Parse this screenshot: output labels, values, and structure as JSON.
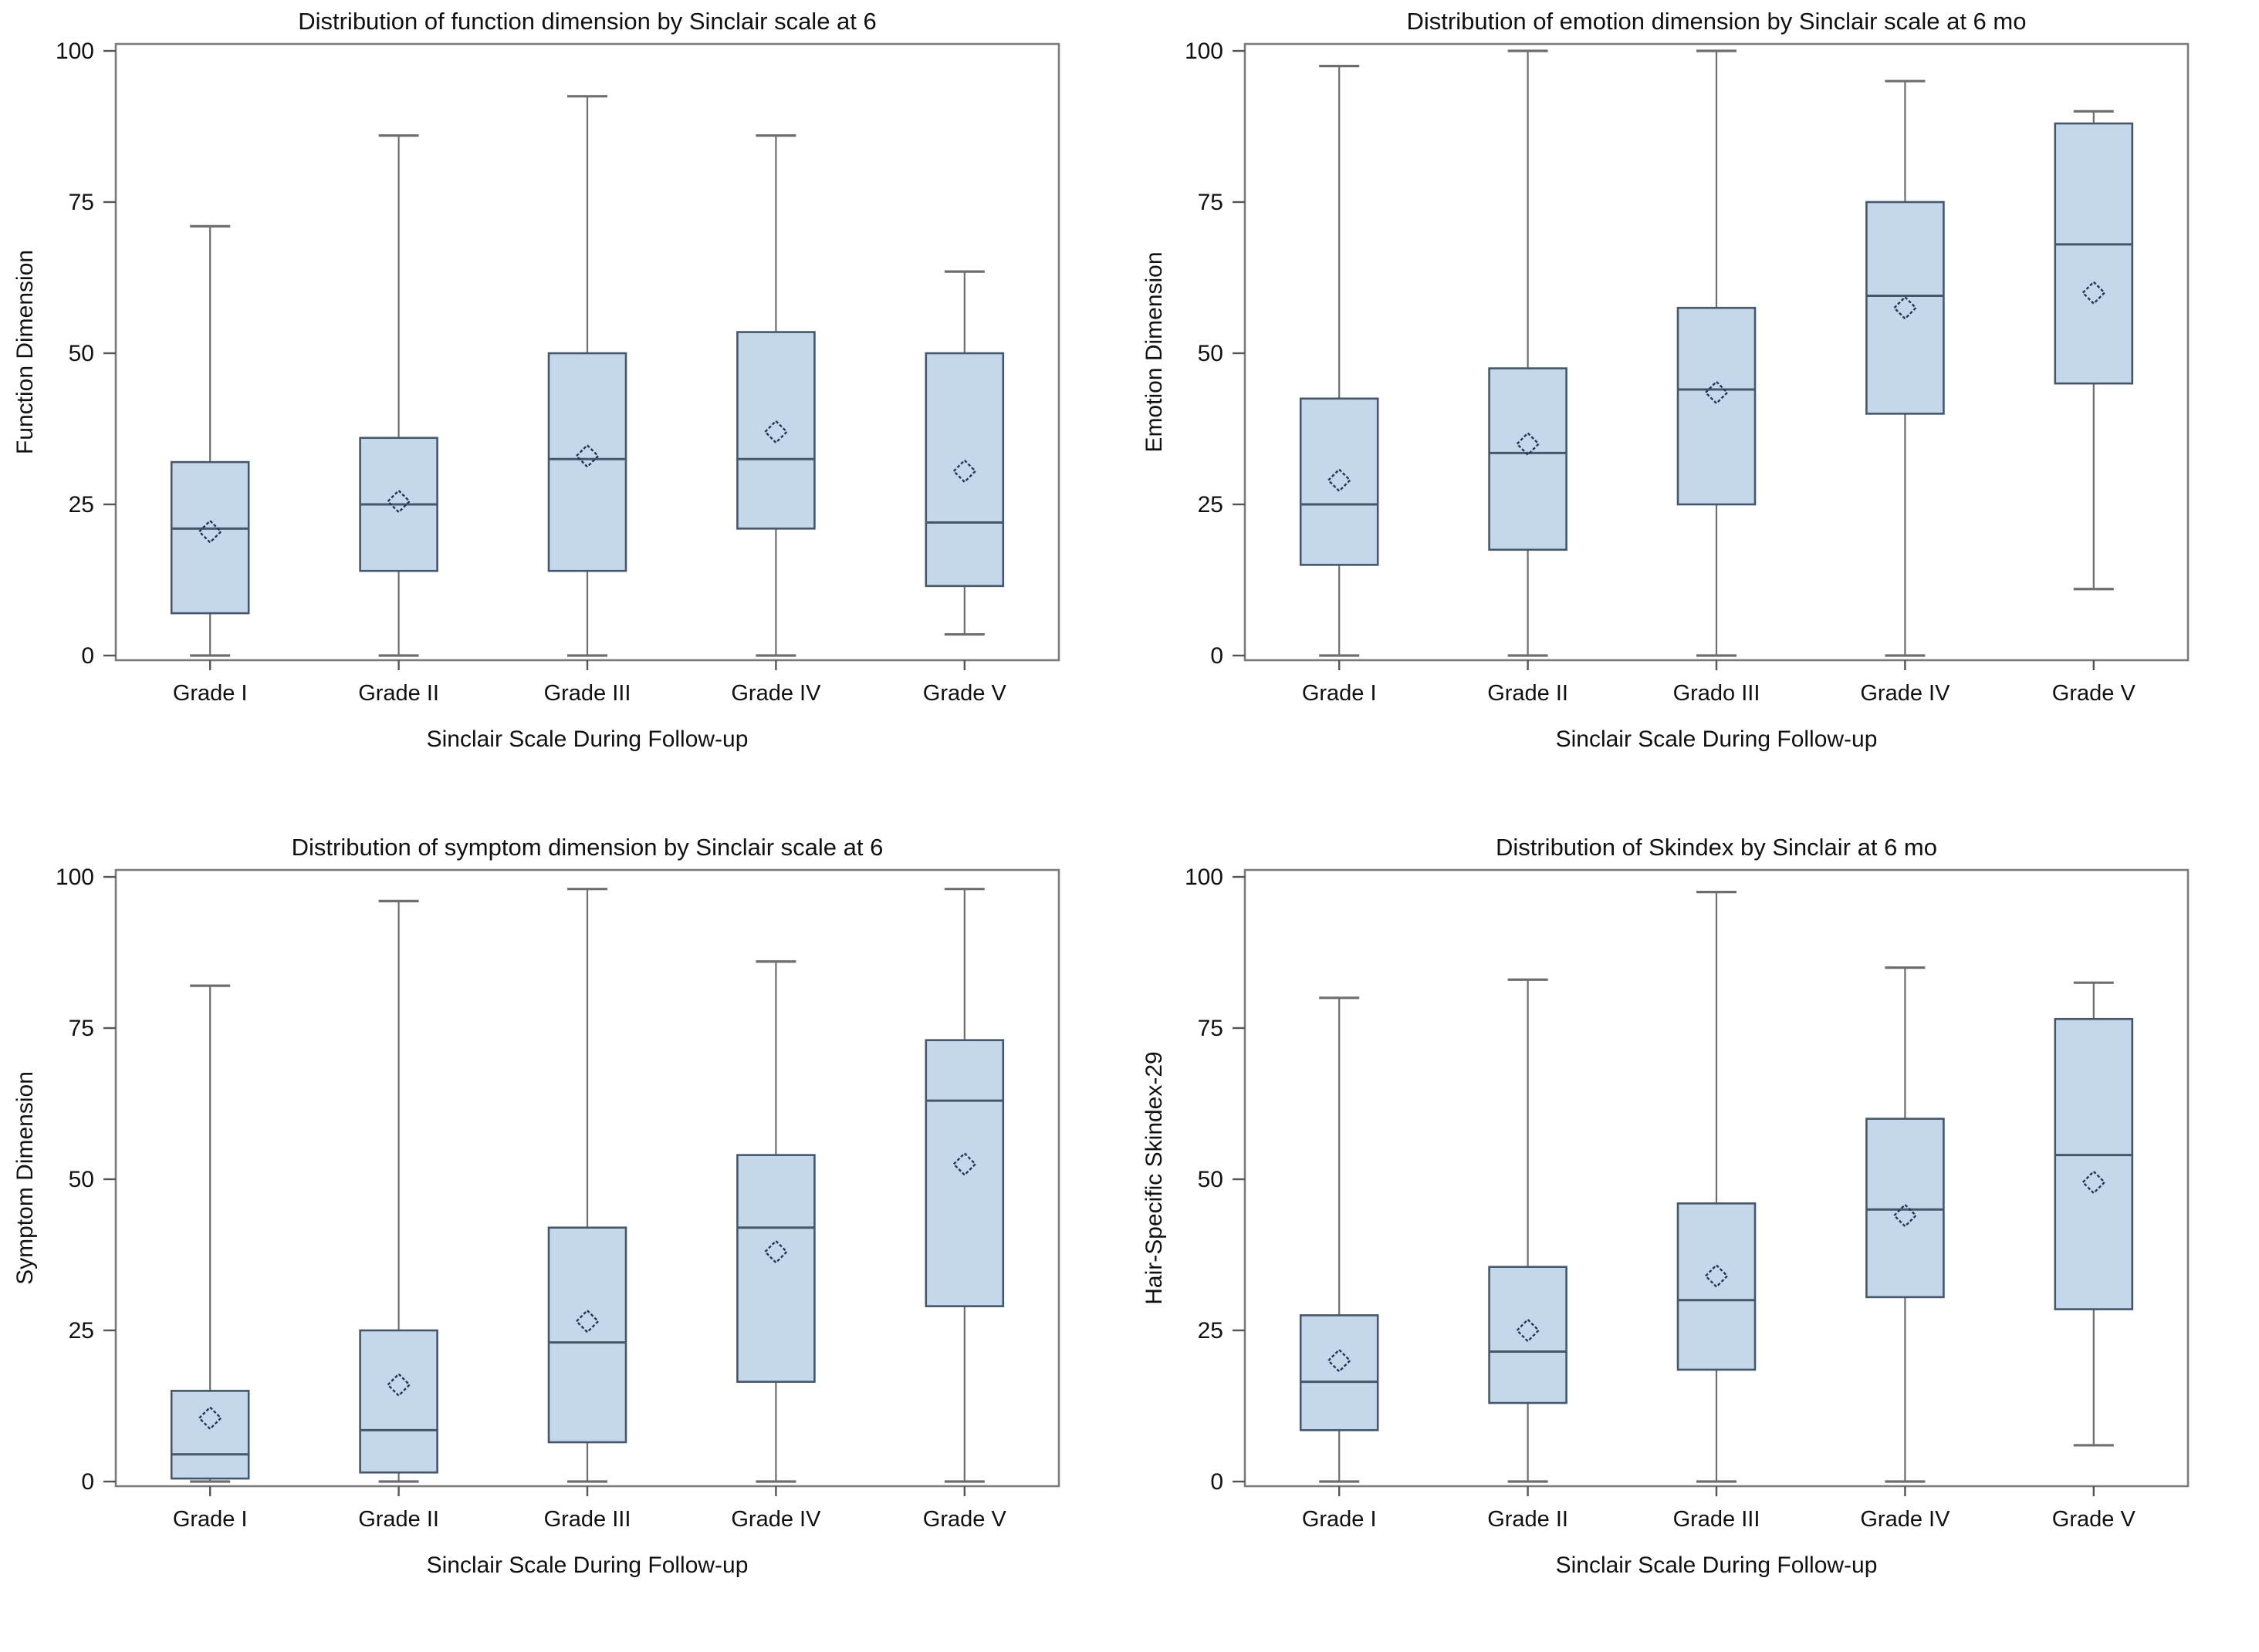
{
  "figure": {
    "description": "Four box plots of Skindex quality-of-life dimensions by Sinclair scale grade at 6 months follow-up",
    "colors": {
      "box_fill": "#c5d7ea",
      "box_border": "#44576b",
      "median_line": "#44576b",
      "whisker": "#6e6e6e",
      "whisker_cap": "#6e6e6e",
      "mean_marker": "#243751",
      "frame": "#7b7b7b",
      "tick": "#555555",
      "text": "#111111",
      "background": "#ffffff"
    }
  },
  "chart_data": [
    {
      "type": "box",
      "title": "Distribution of function dimension by Sinclair scale at 6",
      "ylabel": "Function Dimension",
      "xlabel": "Sinclair Scale During Follow-up",
      "ylim": [
        0,
        100
      ],
      "yticks": [
        0,
        25,
        50,
        75,
        100
      ],
      "grid": false,
      "legend": "none",
      "categories": [
        "Grade I",
        "Grade II",
        "Grade III",
        "Grade IV",
        "Grade V"
      ],
      "series": [
        {
          "category": "Grade I",
          "low": 0,
          "q1": 7,
          "median": 21,
          "mean": 20.5,
          "q3": 32,
          "high": 71
        },
        {
          "category": "Grade II",
          "low": 0,
          "q1": 14,
          "median": 25,
          "mean": 25.5,
          "q3": 36,
          "high": 86
        },
        {
          "category": "Grade III",
          "low": 0,
          "q1": 14,
          "median": 32.5,
          "mean": 33,
          "q3": 50,
          "high": 92.5
        },
        {
          "category": "Grade IV",
          "low": 0,
          "q1": 21,
          "median": 32.5,
          "mean": 37,
          "q3": 53.5,
          "high": 86
        },
        {
          "category": "Grade V",
          "low": 3.5,
          "q1": 11.5,
          "median": 22,
          "mean": 30.5,
          "q3": 50,
          "high": 63.5
        }
      ]
    },
    {
      "type": "box",
      "title": "Distribution of emotion dimension by Sinclair scale at 6 mo",
      "ylabel": "Emotion Dimension",
      "xlabel": "Sinclair Scale During Follow-up",
      "ylim": [
        0,
        100
      ],
      "yticks": [
        0,
        25,
        50,
        75,
        100
      ],
      "grid": false,
      "legend": "none",
      "categories": [
        "Grade I",
        "Grade II",
        "Grado III",
        "Grade IV",
        "Grade V"
      ],
      "series": [
        {
          "category": "Grade I",
          "low": 0,
          "q1": 15,
          "median": 25,
          "mean": 29,
          "q3": 42.5,
          "high": 97.5
        },
        {
          "category": "Grade II",
          "low": 0,
          "q1": 17.5,
          "median": 33.5,
          "mean": 35,
          "q3": 47.5,
          "high": 100
        },
        {
          "category": "Grado III",
          "low": 0,
          "q1": 25,
          "median": 44,
          "mean": 43.5,
          "q3": 57.5,
          "high": 100
        },
        {
          "category": "Grade IV",
          "low": 0,
          "q1": 40,
          "median": 59.5,
          "mean": 57.5,
          "q3": 75,
          "high": 95
        },
        {
          "category": "Grade V",
          "low": 11,
          "q1": 45,
          "median": 68,
          "mean": 60,
          "q3": 88,
          "high": 90
        }
      ]
    },
    {
      "type": "box",
      "title": "Distribution of symptom dimension by Sinclair scale at 6",
      "ylabel": "Symptom Dimension",
      "xlabel": "Sinclair Scale During Follow-up",
      "ylim": [
        0,
        100
      ],
      "yticks": [
        0,
        25,
        50,
        75,
        100
      ],
      "grid": false,
      "legend": "none",
      "categories": [
        "Grade I",
        "Grade II",
        "Grade III",
        "Grade IV",
        "Grade V"
      ],
      "series": [
        {
          "category": "Grade I",
          "low": 0,
          "q1": 0.5,
          "median": 4.5,
          "mean": 10.5,
          "q3": 15,
          "high": 82
        },
        {
          "category": "Grade II",
          "low": 0,
          "q1": 1.5,
          "median": 8.5,
          "mean": 16,
          "q3": 25,
          "high": 96
        },
        {
          "category": "Grade III",
          "low": 0,
          "q1": 6.5,
          "median": 23,
          "mean": 26.5,
          "q3": 42,
          "high": 98
        },
        {
          "category": "Grade IV",
          "low": 0,
          "q1": 16.5,
          "median": 42,
          "mean": 38,
          "q3": 54,
          "high": 86
        },
        {
          "category": "Grade V",
          "low": 0,
          "q1": 29,
          "median": 63,
          "mean": 52.5,
          "q3": 73,
          "high": 98
        }
      ]
    },
    {
      "type": "box",
      "title": "Distribution of Skindex by Sinclair at 6 mo",
      "ylabel": "Hair-Specific Skindex-29",
      "xlabel": "Sinclair Scale During Follow-up",
      "ylim": [
        0,
        100
      ],
      "yticks": [
        0,
        25,
        50,
        75,
        100
      ],
      "grid": false,
      "legend": "none",
      "categories": [
        "Grade I",
        "Grade II",
        "Grade III",
        "Grade IV",
        "Grade V"
      ],
      "series": [
        {
          "category": "Grade I",
          "low": 0,
          "q1": 8.5,
          "median": 16.5,
          "mean": 20,
          "q3": 27.5,
          "high": 80
        },
        {
          "category": "Grade II",
          "low": 0,
          "q1": 13,
          "median": 21.5,
          "mean": 25,
          "q3": 35.5,
          "high": 83
        },
        {
          "category": "Grade III",
          "low": 0,
          "q1": 18.5,
          "median": 30,
          "mean": 34,
          "q3": 46,
          "high": 97.5
        },
        {
          "category": "Grade IV",
          "low": 0,
          "q1": 30.5,
          "median": 45,
          "mean": 44,
          "q3": 60,
          "high": 85
        },
        {
          "category": "Grade V",
          "low": 6,
          "q1": 28.5,
          "median": 54,
          "mean": 49.5,
          "q3": 76.5,
          "high": 82.5
        }
      ]
    }
  ]
}
